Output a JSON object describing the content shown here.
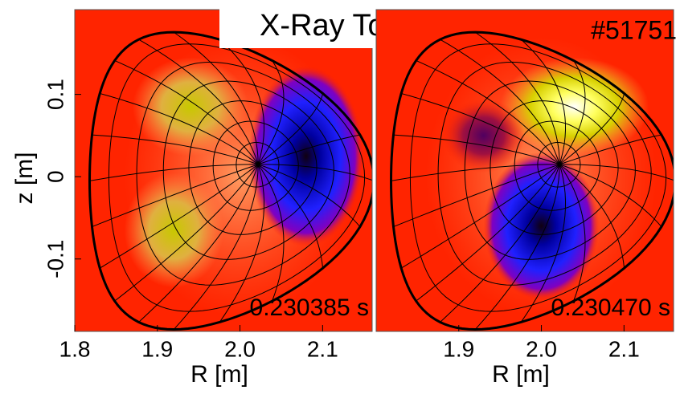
{
  "chart_data": [
    {
      "type": "contour",
      "title": "X-Ray Tomograms",
      "xlabel": "R [m]",
      "ylabel": "z [m]",
      "xlim": [
        1.8,
        2.16
      ],
      "ylim": [
        -0.188,
        0.203
      ],
      "xticks": [
        1.8,
        1.9,
        {
          "value": 2,
          "label": "2.0"
        },
        2.1
      ],
      "yticks": [
        0.1,
        0,
        -0.1
      ],
      "annotation": "0.230385 s"
    },
    {
      "type": "contour",
      "xlabel": "R [m]",
      "shot": "#51751",
      "xlim": [
        1.8,
        2.16
      ],
      "ylim": [
        -0.188,
        0.203
      ],
      "xticks": [
        1.9,
        {
          "value": 2,
          "label": "2.0"
        },
        2.1
      ],
      "annotation": "0.230470 s"
    }
  ]
}
